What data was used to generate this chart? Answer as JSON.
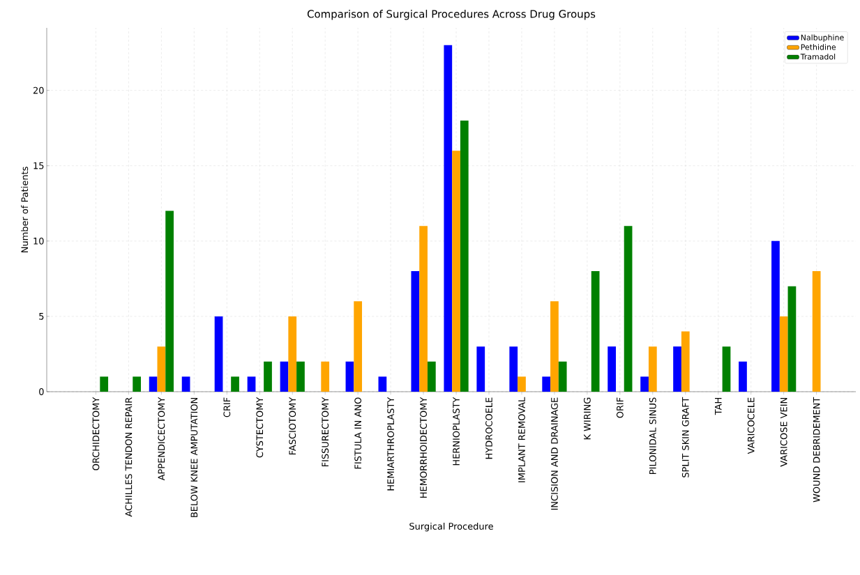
{
  "chart_data": {
    "type": "bar",
    "title": "Comparison of Surgical Procedures Across Drug Groups",
    "xlabel": "Surgical Procedure",
    "ylabel": "Number of Patients",
    "categories": [
      "ORCHIDECTOMY",
      "ACHILLES TENDON REPAIR",
      "APPENDICECTOMY",
      "BELOW KNEE AMPUTATION",
      "CRIF",
      "CYSTECTOMY",
      "FASCIOTOMY",
      "FISSURECTOMY",
      "FISTULA IN ANO",
      "HEMIARTHROPLASTY",
      "HEMORRHOIDECTOMY",
      "HERNIOPLASTY",
      "HYDROCOELE",
      "IMPLANT REMOVAL",
      "INCISION AND DRAINAGE",
      "K WIRING",
      "ORIF",
      "PILONIDAL SINUS",
      "SPLIT SKIN GRAFT",
      "TAH",
      "VARICOCELE",
      "VARICOSE VEIN",
      "WOUND DEBRIDEMENT"
    ],
    "series": [
      {
        "name": "Nalbuphine",
        "color": "#0000ff",
        "values": [
          0,
          0,
          1,
          1,
          5,
          1,
          2,
          0,
          2,
          1,
          8,
          23,
          3,
          3,
          1,
          0,
          3,
          1,
          3,
          0,
          2,
          10,
          0
        ]
      },
      {
        "name": "Pethidine",
        "color": "#ffa500",
        "values": [
          0,
          0,
          3,
          0,
          0,
          0,
          5,
          2,
          6,
          0,
          11,
          16,
          0,
          1,
          6,
          0,
          0,
          3,
          4,
          0,
          0,
          5,
          8
        ]
      },
      {
        "name": "Tramadol",
        "color": "#008000",
        "values": [
          1,
          1,
          12,
          0,
          1,
          2,
          2,
          0,
          0,
          0,
          2,
          18,
          0,
          0,
          2,
          8,
          11,
          0,
          0,
          3,
          0,
          7,
          0
        ]
      }
    ],
    "ylim": [
      0,
      24.15
    ],
    "yticks": [
      0,
      5,
      10,
      15,
      20
    ],
    "grid": true,
    "legend": "top right"
  }
}
